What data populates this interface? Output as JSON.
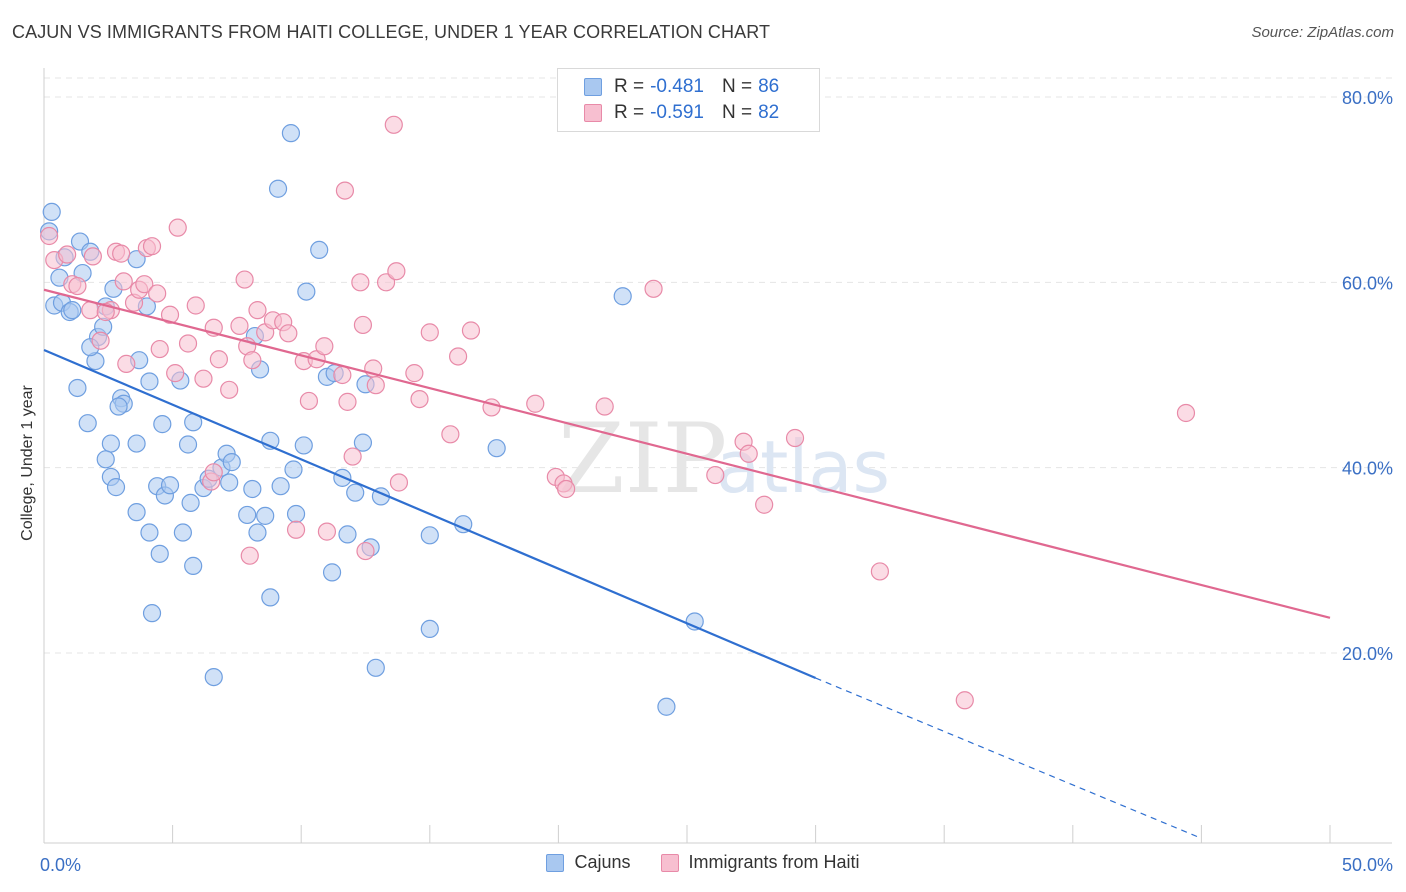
{
  "title": "CAJUN VS IMMIGRANTS FROM HAITI COLLEGE, UNDER 1 YEAR CORRELATION CHART",
  "source": "Source: ZipAtlas.com",
  "watermark": {
    "zip": "ZIP",
    "atlas": "atlas"
  },
  "legend": {
    "rows": [
      {
        "r_label": "R =",
        "r_value": "-0.481",
        "n_label": "N =",
        "n_value": "86",
        "color": "#a9c8f0",
        "stroke": "#6f9fe0"
      },
      {
        "r_label": "R =",
        "r_value": "-0.591",
        "n_label": "N =",
        "n_value": "82",
        "color": "#f7bfd0",
        "stroke": "#e88aa8"
      }
    ]
  },
  "bottom_legend": [
    {
      "label": "Cajuns",
      "color": "#a9c8f0",
      "stroke": "#6f9fe0"
    },
    {
      "label": "Immigrants from Haiti",
      "color": "#f7bfd0",
      "stroke": "#e88aa8"
    }
  ],
  "chart_data": {
    "type": "scatter",
    "title": "CAJUN VS IMMIGRANTS FROM HAITI COLLEGE, UNDER 1 YEAR CORRELATION CHART",
    "xlabel": "",
    "ylabel": "College, Under 1 year",
    "xlim": [
      0,
      50
    ],
    "ylim": [
      0,
      83
    ],
    "x_tick_labels": [
      {
        "value": 0,
        "label": "0.0%"
      },
      {
        "value": 50,
        "label": "50.0%"
      }
    ],
    "y_tick_labels": [
      {
        "value": 20,
        "label": "20.0%"
      },
      {
        "value": 40,
        "label": "40.0%"
      },
      {
        "value": 60,
        "label": "60.0%"
      },
      {
        "value": 80,
        "label": "80.0%"
      }
    ],
    "grid": true,
    "series": [
      {
        "name": "Cajuns",
        "color": "#a9c8f0",
        "stroke": "#6f9fe0",
        "trend": {
          "x0": 0,
          "y0": 52.7,
          "x1": 30,
          "y1": 17.3,
          "dash_to_x": 45,
          "dash_to_y": 0
        },
        "trend_color": "#2f6fd0",
        "points": [
          [
            0.3,
            67.6
          ],
          [
            0.2,
            65.5
          ],
          [
            0.4,
            57.5
          ],
          [
            0.6,
            60.5
          ],
          [
            0.8,
            62.7
          ],
          [
            0.7,
            57.8
          ],
          [
            1.0,
            56.8
          ],
          [
            1.1,
            57.0
          ],
          [
            1.4,
            64.4
          ],
          [
            1.5,
            61.0
          ],
          [
            1.8,
            63.3
          ],
          [
            2.1,
            54.1
          ],
          [
            2.3,
            55.2
          ],
          [
            2.0,
            51.5
          ],
          [
            1.8,
            53.0
          ],
          [
            2.4,
            57.4
          ],
          [
            2.7,
            59.3
          ],
          [
            3.0,
            47.5
          ],
          [
            3.1,
            46.9
          ],
          [
            2.9,
            46.6
          ],
          [
            2.6,
            42.6
          ],
          [
            1.7,
            44.8
          ],
          [
            1.3,
            48.6
          ],
          [
            2.6,
            39.0
          ],
          [
            2.8,
            37.9
          ],
          [
            3.6,
            42.6
          ],
          [
            3.7,
            51.6
          ],
          [
            4.0,
            57.4
          ],
          [
            3.6,
            62.5
          ],
          [
            4.1,
            49.3
          ],
          [
            4.6,
            44.7
          ],
          [
            4.4,
            38.0
          ],
          [
            4.1,
            33.0
          ],
          [
            4.7,
            37.0
          ],
          [
            4.9,
            38.1
          ],
          [
            5.3,
            49.4
          ],
          [
            5.6,
            42.5
          ],
          [
            5.8,
            44.9
          ],
          [
            5.7,
            36.2
          ],
          [
            5.4,
            33.0
          ],
          [
            6.2,
            37.8
          ],
          [
            6.4,
            38.8
          ],
          [
            6.9,
            40.0
          ],
          [
            7.1,
            41.5
          ],
          [
            7.3,
            40.6
          ],
          [
            7.2,
            38.4
          ],
          [
            7.9,
            34.9
          ],
          [
            8.1,
            37.7
          ],
          [
            8.2,
            54.2
          ],
          [
            8.4,
            50.6
          ],
          [
            8.3,
            33.0
          ],
          [
            8.6,
            34.8
          ],
          [
            8.8,
            42.9
          ],
          [
            8.8,
            26.0
          ],
          [
            9.1,
            70.1
          ],
          [
            9.2,
            38.0
          ],
          [
            9.6,
            76.1
          ],
          [
            9.7,
            39.8
          ],
          [
            9.8,
            35.0
          ],
          [
            10.1,
            42.4
          ],
          [
            10.2,
            59.0
          ],
          [
            10.7,
            63.5
          ],
          [
            11.0,
            49.8
          ],
          [
            11.2,
            28.7
          ],
          [
            11.3,
            50.2
          ],
          [
            11.6,
            38.9
          ],
          [
            11.8,
            32.8
          ],
          [
            12.1,
            37.3
          ],
          [
            12.4,
            42.7
          ],
          [
            12.5,
            49.0
          ],
          [
            12.7,
            31.4
          ],
          [
            12.9,
            18.4
          ],
          [
            13.1,
            36.9
          ],
          [
            15.0,
            32.7
          ],
          [
            15.0,
            22.6
          ],
          [
            16.3,
            33.9
          ],
          [
            17.6,
            42.1
          ],
          [
            22.5,
            58.5
          ],
          [
            24.2,
            14.2
          ],
          [
            25.3,
            23.4
          ],
          [
            4.2,
            24.3
          ],
          [
            5.8,
            29.4
          ],
          [
            6.6,
            17.4
          ],
          [
            4.5,
            30.7
          ],
          [
            3.6,
            35.2
          ],
          [
            2.4,
            40.9
          ]
        ]
      },
      {
        "name": "Immigrants from Haiti",
        "color": "#f7bfd0",
        "stroke": "#e88aa8",
        "trend": {
          "x0": 0,
          "y0": 59.2,
          "x1": 50,
          "y1": 23.8
        },
        "trend_color": "#e06890",
        "points": [
          [
            0.2,
            65.0
          ],
          [
            0.4,
            62.4
          ],
          [
            0.9,
            63.0
          ],
          [
            1.1,
            59.8
          ],
          [
            1.3,
            59.6
          ],
          [
            1.8,
            57.0
          ],
          [
            1.9,
            62.8
          ],
          [
            2.2,
            53.7
          ],
          [
            2.6,
            57.0
          ],
          [
            2.8,
            63.3
          ],
          [
            3.0,
            63.1
          ],
          [
            3.1,
            60.1
          ],
          [
            3.2,
            51.2
          ],
          [
            3.5,
            57.8
          ],
          [
            3.7,
            59.2
          ],
          [
            3.9,
            59.8
          ],
          [
            4.0,
            63.7
          ],
          [
            4.2,
            63.9
          ],
          [
            4.4,
            58.8
          ],
          [
            4.5,
            52.8
          ],
          [
            4.9,
            56.5
          ],
          [
            5.1,
            50.2
          ],
          [
            5.2,
            65.9
          ],
          [
            5.6,
            53.4
          ],
          [
            5.9,
            57.5
          ],
          [
            6.2,
            49.6
          ],
          [
            6.6,
            55.1
          ],
          [
            6.8,
            51.7
          ],
          [
            7.2,
            48.4
          ],
          [
            7.6,
            55.3
          ],
          [
            7.8,
            60.3
          ],
          [
            7.9,
            53.1
          ],
          [
            8.1,
            51.6
          ],
          [
            8.3,
            57.0
          ],
          [
            8.6,
            54.6
          ],
          [
            8.9,
            55.9
          ],
          [
            9.3,
            55.7
          ],
          [
            9.5,
            54.5
          ],
          [
            9.8,
            33.3
          ],
          [
            10.1,
            51.5
          ],
          [
            10.3,
            47.2
          ],
          [
            10.6,
            51.7
          ],
          [
            10.9,
            53.1
          ],
          [
            11.0,
            33.1
          ],
          [
            11.6,
            50.0
          ],
          [
            11.8,
            47.1
          ],
          [
            12.0,
            41.2
          ],
          [
            12.3,
            60.0
          ],
          [
            12.4,
            55.4
          ],
          [
            12.5,
            31.0
          ],
          [
            12.8,
            50.7
          ],
          [
            12.9,
            48.9
          ],
          [
            13.3,
            60.0
          ],
          [
            13.7,
            61.2
          ],
          [
            13.6,
            77.0
          ],
          [
            11.7,
            69.9
          ],
          [
            13.8,
            38.4
          ],
          [
            14.4,
            50.2
          ],
          [
            14.6,
            47.4
          ],
          [
            15.0,
            54.6
          ],
          [
            15.8,
            43.6
          ],
          [
            16.1,
            52.0
          ],
          [
            16.6,
            54.8
          ],
          [
            17.4,
            46.5
          ],
          [
            19.1,
            46.9
          ],
          [
            19.9,
            39.0
          ],
          [
            20.2,
            38.3
          ],
          [
            20.3,
            37.7
          ],
          [
            21.8,
            46.6
          ],
          [
            23.7,
            59.3
          ],
          [
            26.1,
            39.2
          ],
          [
            27.2,
            42.8
          ],
          [
            27.4,
            41.5
          ],
          [
            28.0,
            36.0
          ],
          [
            29.2,
            43.2
          ],
          [
            32.5,
            28.8
          ],
          [
            35.8,
            14.9
          ],
          [
            44.4,
            45.9
          ],
          [
            8.0,
            30.5
          ],
          [
            6.5,
            38.5
          ],
          [
            6.6,
            39.5
          ],
          [
            2.4,
            56.8
          ]
        ]
      }
    ]
  }
}
